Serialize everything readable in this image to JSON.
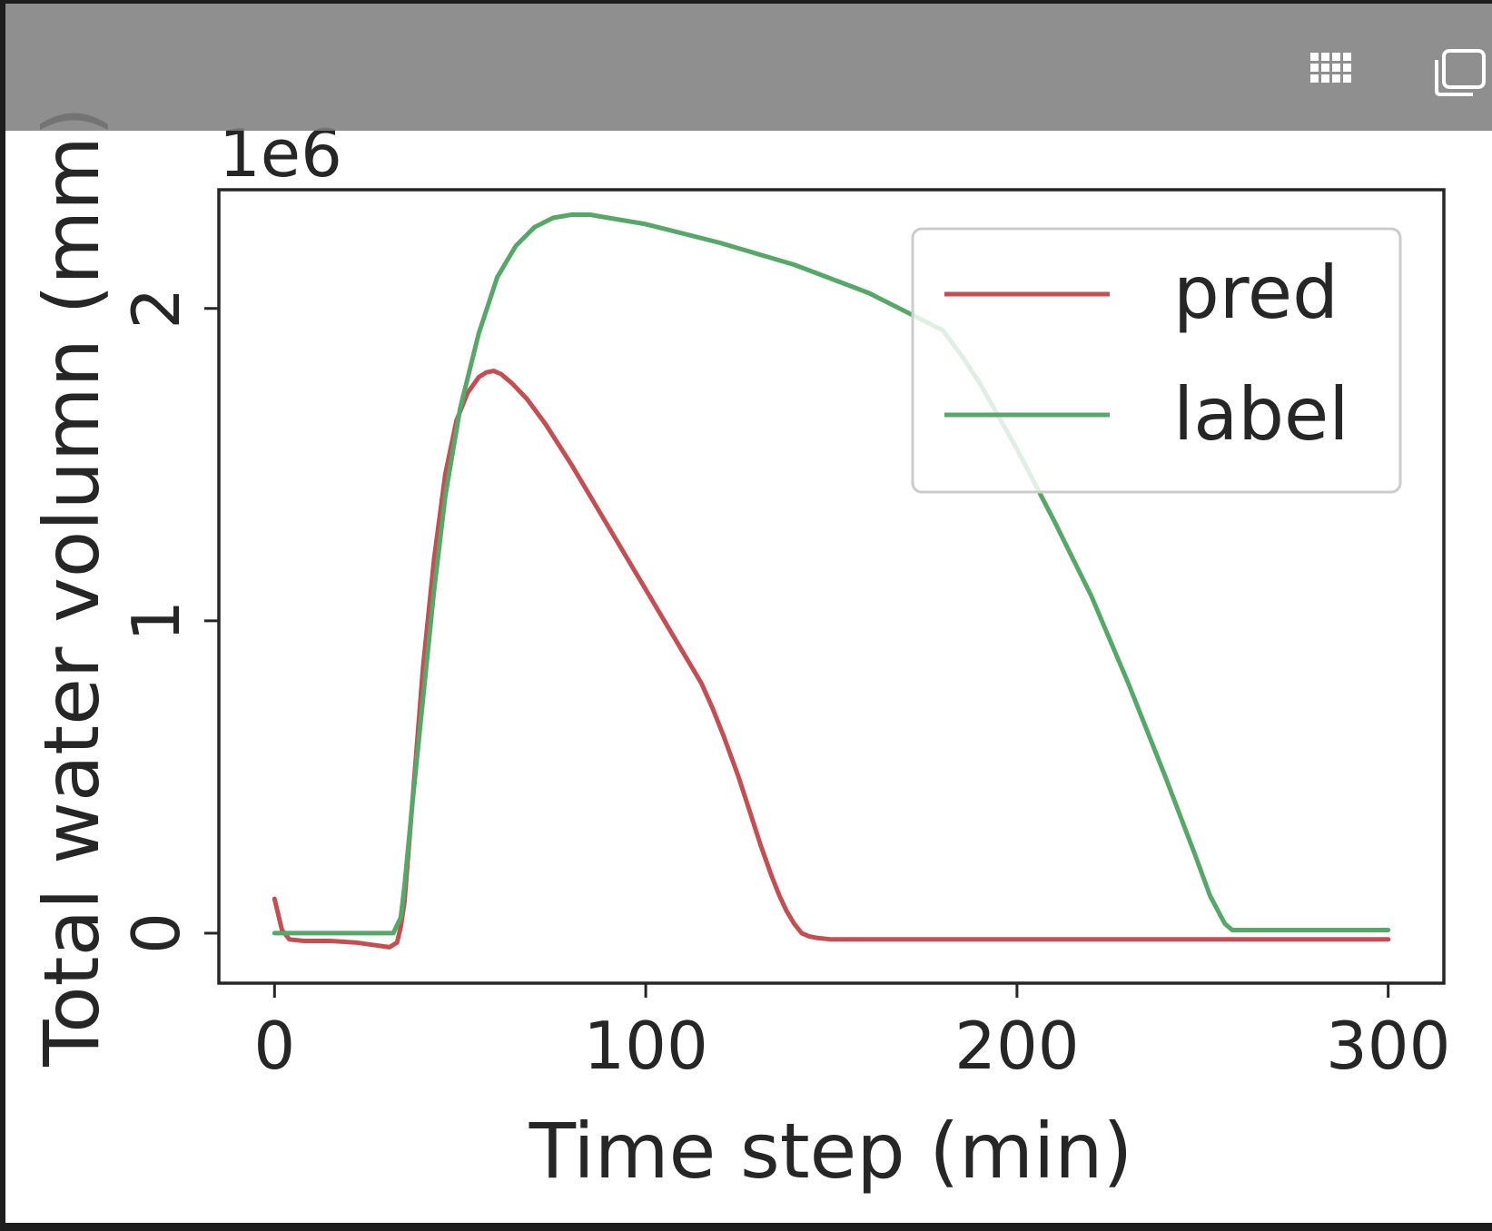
{
  "toolbar": {
    "grid_icon": "grid-icon",
    "copy_icon": "copy-icon"
  },
  "chart_data": {
    "type": "line",
    "xlabel": "Time step (min)",
    "ylabel": "Total water volumn (mm)",
    "y_offset_label": "1e6",
    "xlim": [
      -15,
      315
    ],
    "ylim": [
      -0.16,
      2.38
    ],
    "x_ticks": [
      0,
      100,
      200,
      300
    ],
    "y_ticks": [
      0,
      1,
      2
    ],
    "x_tick_labels": [
      "0",
      "100",
      "200",
      "300"
    ],
    "y_tick_labels": [
      "0",
      "1",
      "2"
    ],
    "grid": false,
    "legend_position": "top-right",
    "series": [
      {
        "name": "pred",
        "color": "#c44e52",
        "x": [
          0,
          1,
          2,
          4,
          8,
          15,
          22,
          28,
          31,
          33,
          34,
          35,
          36,
          38,
          40,
          43,
          46,
          49,
          52,
          55,
          57,
          59,
          61,
          64,
          68,
          73,
          80,
          90,
          100,
          110,
          115,
          118,
          121,
          125,
          128,
          131,
          134,
          136,
          138,
          140,
          142,
          144,
          146,
          150,
          160,
          200,
          250,
          300
        ],
        "y": [
          0.11,
          0.06,
          0.01,
          -0.02,
          -0.025,
          -0.025,
          -0.03,
          -0.04,
          -0.045,
          -0.03,
          0.02,
          0.1,
          0.25,
          0.55,
          0.85,
          1.2,
          1.47,
          1.64,
          1.73,
          1.78,
          1.795,
          1.8,
          1.79,
          1.76,
          1.71,
          1.63,
          1.5,
          1.3,
          1.1,
          0.9,
          0.8,
          0.72,
          0.63,
          0.5,
          0.39,
          0.28,
          0.18,
          0.12,
          0.07,
          0.03,
          0.0,
          -0.01,
          -0.015,
          -0.02,
          -0.02,
          -0.02,
          -0.02,
          -0.02
        ]
      },
      {
        "name": "label",
        "color": "#55a868",
        "x": [
          0,
          10,
          20,
          30,
          32,
          34,
          35,
          37,
          40,
          43,
          46,
          50,
          55,
          60,
          65,
          70,
          75,
          80,
          85,
          90,
          100,
          120,
          140,
          160,
          170,
          180,
          185,
          190,
          200,
          210,
          220,
          230,
          240,
          248,
          252,
          256,
          258,
          260,
          300
        ],
        "y": [
          0.0,
          0.0,
          0.0,
          0.0,
          0.0,
          0.05,
          0.15,
          0.4,
          0.75,
          1.1,
          1.4,
          1.68,
          1.92,
          2.1,
          2.2,
          2.26,
          2.29,
          2.3,
          2.3,
          2.29,
          2.27,
          2.21,
          2.14,
          2.05,
          1.99,
          1.93,
          1.85,
          1.76,
          1.55,
          1.32,
          1.08,
          0.8,
          0.5,
          0.25,
          0.12,
          0.03,
          0.01,
          0.01,
          0.01
        ]
      }
    ]
  }
}
